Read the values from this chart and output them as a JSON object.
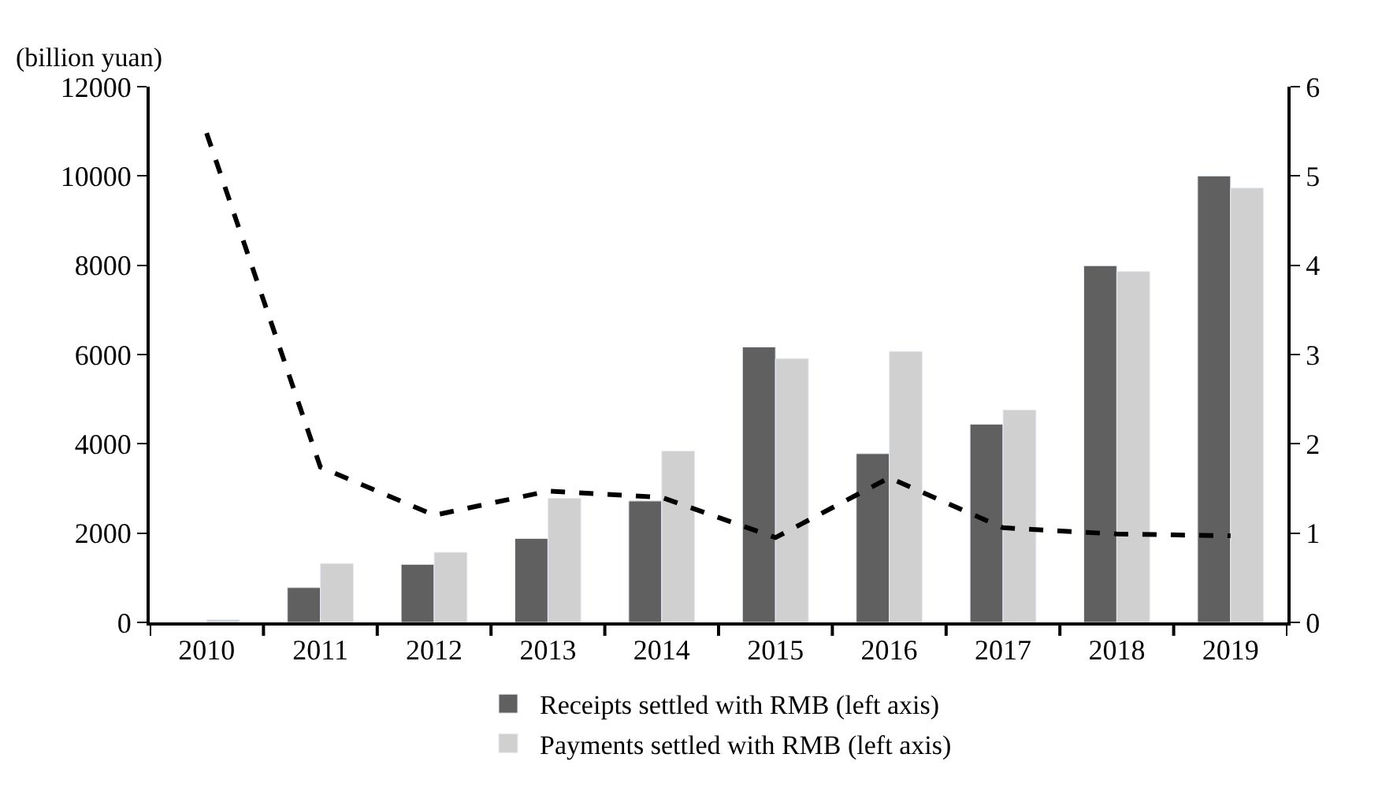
{
  "chart_data": {
    "type": "bar",
    "ylabel": "(billion yuan)",
    "categories": [
      "2010",
      "2011",
      "2012",
      "2013",
      "2014",
      "2015",
      "2016",
      "2017",
      "2018",
      "2019"
    ],
    "series": [
      {
        "name": "Receipts settled with RMB (left axis)",
        "color": "#606060",
        "values": [
          null,
          780,
          1300,
          1880,
          2720,
          6170,
          3780,
          4440,
          7990,
          10000
        ]
      },
      {
        "name": "Payments settled with RMB (left axis)",
        "color": "#d0d0d0",
        "values": [
          60,
          1320,
          1570,
          2780,
          3840,
          5910,
          6070,
          4760,
          7860,
          9730
        ]
      },
      {
        "type": "line",
        "axis": "y2",
        "color": "#000000",
        "line_style": "dashed",
        "values": [
          5.48,
          1.74,
          1.2,
          1.47,
          1.4,
          0.95,
          1.62,
          1.06,
          0.99,
          0.97
        ]
      }
    ],
    "ylim": [
      0,
      12000
    ],
    "yticks": [
      0,
      2000,
      4000,
      6000,
      8000,
      10000,
      12000
    ],
    "y2lim": [
      0,
      6
    ],
    "y2ticks": [
      0,
      1,
      2,
      3,
      4,
      5,
      6
    ],
    "legend": "bottom",
    "marker": "none"
  }
}
